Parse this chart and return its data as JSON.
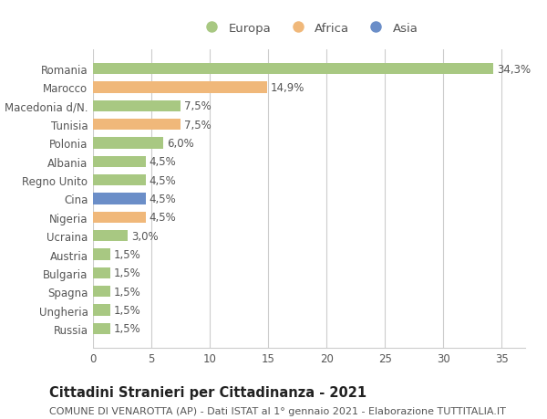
{
  "categories": [
    "Romania",
    "Marocco",
    "Macedonia d/N.",
    "Tunisia",
    "Polonia",
    "Albania",
    "Regno Unito",
    "Cina",
    "Nigeria",
    "Ucraina",
    "Austria",
    "Bulgaria",
    "Spagna",
    "Ungheria",
    "Russia"
  ],
  "values": [
    34.3,
    14.9,
    7.5,
    7.5,
    6.0,
    4.5,
    4.5,
    4.5,
    4.5,
    3.0,
    1.5,
    1.5,
    1.5,
    1.5,
    1.5
  ],
  "labels": [
    "34,3%",
    "14,9%",
    "7,5%",
    "7,5%",
    "6,0%",
    "4,5%",
    "4,5%",
    "4,5%",
    "4,5%",
    "3,0%",
    "1,5%",
    "1,5%",
    "1,5%",
    "1,5%",
    "1,5%"
  ],
  "continents": [
    "Europa",
    "Africa",
    "Europa",
    "Africa",
    "Europa",
    "Europa",
    "Europa",
    "Asia",
    "Africa",
    "Europa",
    "Europa",
    "Europa",
    "Europa",
    "Europa",
    "Europa"
  ],
  "colors": {
    "Europa": "#a8c882",
    "Africa": "#f0b87a",
    "Asia": "#6b8ec8"
  },
  "legend_labels": [
    "Europa",
    "Africa",
    "Asia"
  ],
  "legend_colors": [
    "#a8c882",
    "#f0b87a",
    "#6b8ec8"
  ],
  "xlim": [
    0,
    37
  ],
  "xticks": [
    0,
    5,
    10,
    15,
    20,
    25,
    30,
    35
  ],
  "title": "Cittadini Stranieri per Cittadinanza - 2021",
  "subtitle": "COMUNE DI VENAROTTA (AP) - Dati ISTAT al 1° gennaio 2021 - Elaborazione TUTTITALIA.IT",
  "bg_color": "#ffffff",
  "grid_color": "#cccccc",
  "bar_height": 0.6,
  "label_fontsize": 8.5,
  "tick_fontsize": 8.5,
  "title_fontsize": 10.5,
  "subtitle_fontsize": 8
}
